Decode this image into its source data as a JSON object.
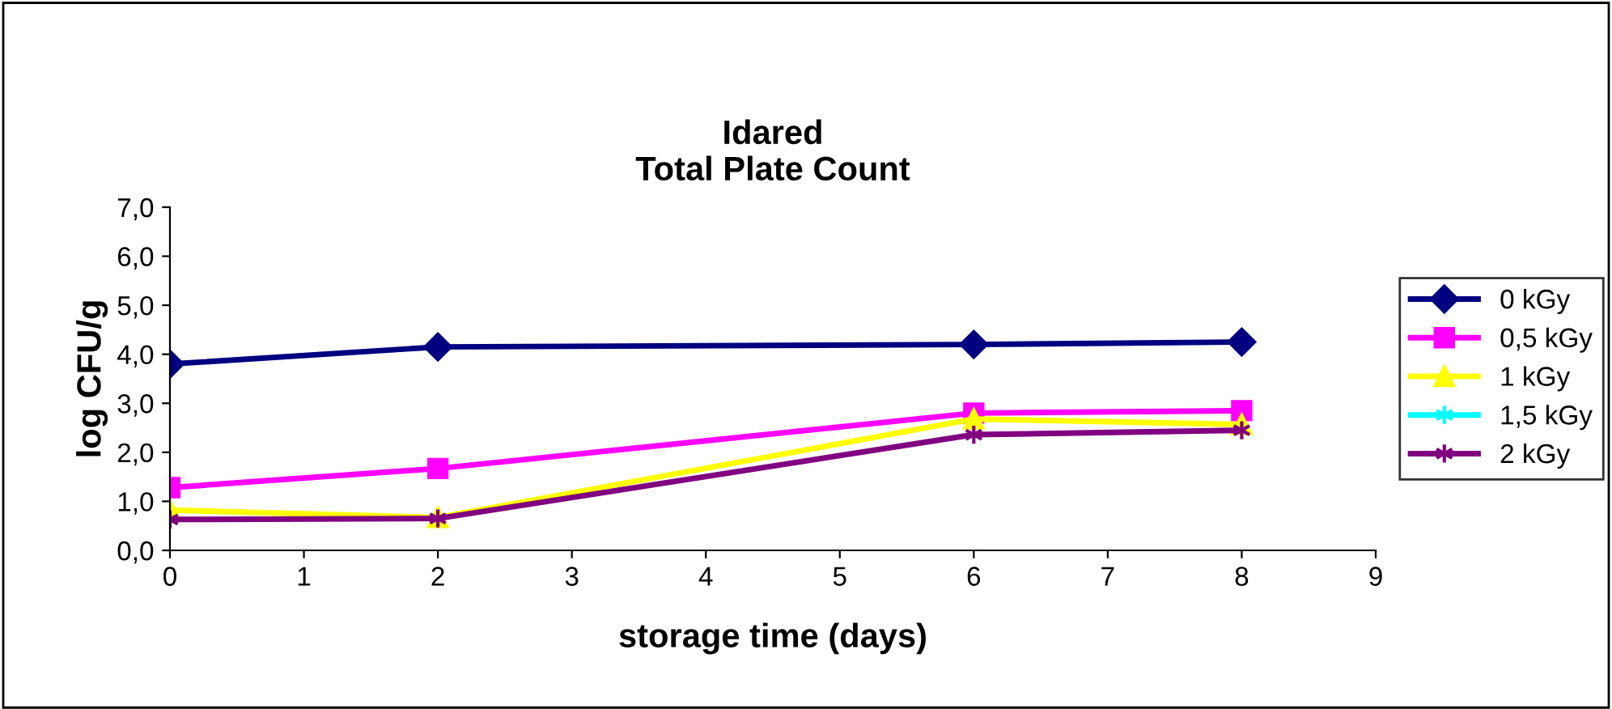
{
  "chart_data": {
    "type": "line",
    "title": "Idared\nTotal Plate Count",
    "xlabel": "storage time (days)",
    "ylabel": "log CFU/g",
    "x": [
      0,
      2,
      6,
      8
    ],
    "series": [
      {
        "name": "0 kGy",
        "color": "#000080",
        "marker": "diamond",
        "values": [
          3.8,
          4.15,
          4.2,
          4.25
        ]
      },
      {
        "name": "0,5 kGy",
        "color": "#ff00ff",
        "marker": "square",
        "values": [
          1.28,
          1.67,
          2.8,
          2.85
        ]
      },
      {
        "name": "1 kGy",
        "color": "#ffff00",
        "marker": "triangle",
        "values": [
          0.82,
          0.67,
          2.68,
          2.57
        ]
      },
      {
        "name": "1,5 kGy",
        "color": "#00ffff",
        "marker": "cross",
        "values": [
          null,
          null,
          null,
          null
        ]
      },
      {
        "name": "2 kGy",
        "color": "#800080",
        "marker": "cross",
        "values": [
          0.63,
          0.65,
          2.36,
          2.45
        ]
      }
    ],
    "xlim": [
      0,
      9
    ],
    "xticks": [
      0,
      1,
      2,
      3,
      4,
      5,
      6,
      7,
      8,
      9
    ],
    "ylim": [
      0,
      7
    ],
    "yticks": [
      {
        "value": 0,
        "label": "0,0"
      },
      {
        "value": 1,
        "label": "1,0"
      },
      {
        "value": 2,
        "label": "2,0"
      },
      {
        "value": 3,
        "label": "3,0"
      },
      {
        "value": 4,
        "label": "4,0"
      },
      {
        "value": 5,
        "label": "5,0"
      },
      {
        "value": 6,
        "label": "6,0"
      },
      {
        "value": 7,
        "label": "7,0"
      }
    ],
    "grid": false,
    "legend": "right",
    "line_style": "solid"
  }
}
